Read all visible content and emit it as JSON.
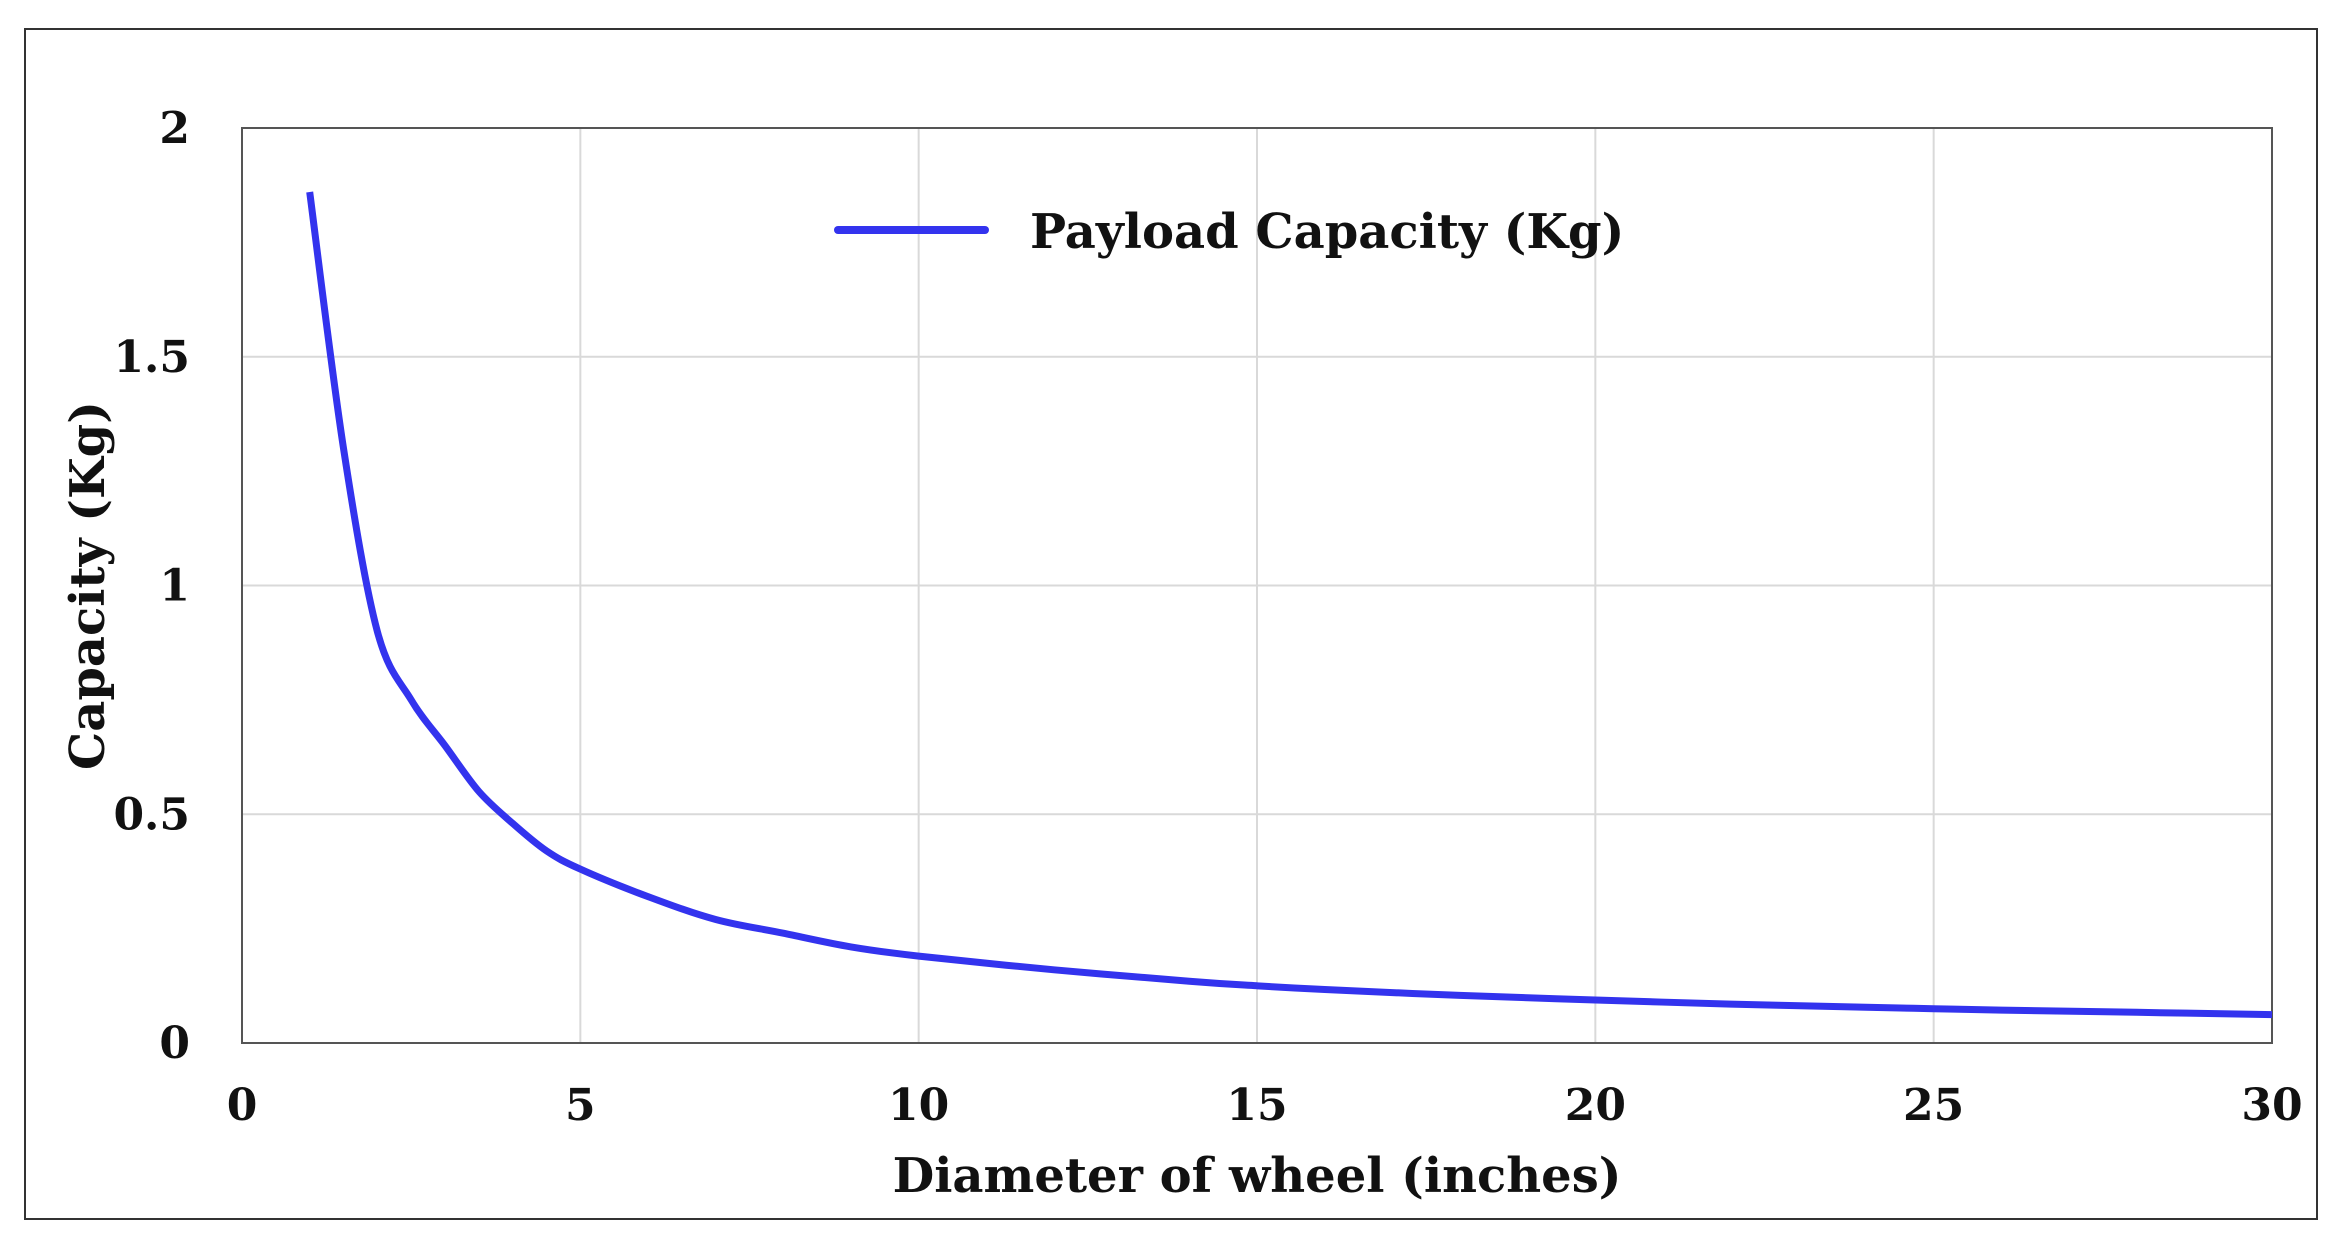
{
  "chart_data": {
    "type": "line",
    "title": "",
    "xlabel": "Diameter of wheel (inches)",
    "ylabel": "Capacity (Kg)",
    "xlim": [
      0,
      30
    ],
    "ylim": [
      0,
      2
    ],
    "x_ticks": [
      "0",
      "5",
      "10",
      "15",
      "20",
      "25",
      "30"
    ],
    "y_ticks": [
      "0",
      "0.5",
      "1",
      "1.5",
      "2"
    ],
    "grid": true,
    "legend_position": "top-center",
    "series": [
      {
        "name": "Payload Capacity (Kg)",
        "color": "#3333ee",
        "x": [
          1,
          1.5,
          2,
          2.5,
          3,
          3.5,
          4,
          4.5,
          5,
          6,
          7,
          8,
          9,
          10,
          12,
          14,
          15,
          16,
          18,
          20,
          22,
          24,
          25,
          26,
          28,
          30
        ],
        "y": [
          1.86,
          1.3,
          0.9,
          0.75,
          0.65,
          0.55,
          0.48,
          0.42,
          0.38,
          0.32,
          0.27,
          0.24,
          0.21,
          0.19,
          0.16,
          0.135,
          0.125,
          0.117,
          0.104,
          0.094,
          0.085,
          0.078,
          0.075,
          0.072,
          0.067,
          0.062
        ]
      }
    ]
  }
}
